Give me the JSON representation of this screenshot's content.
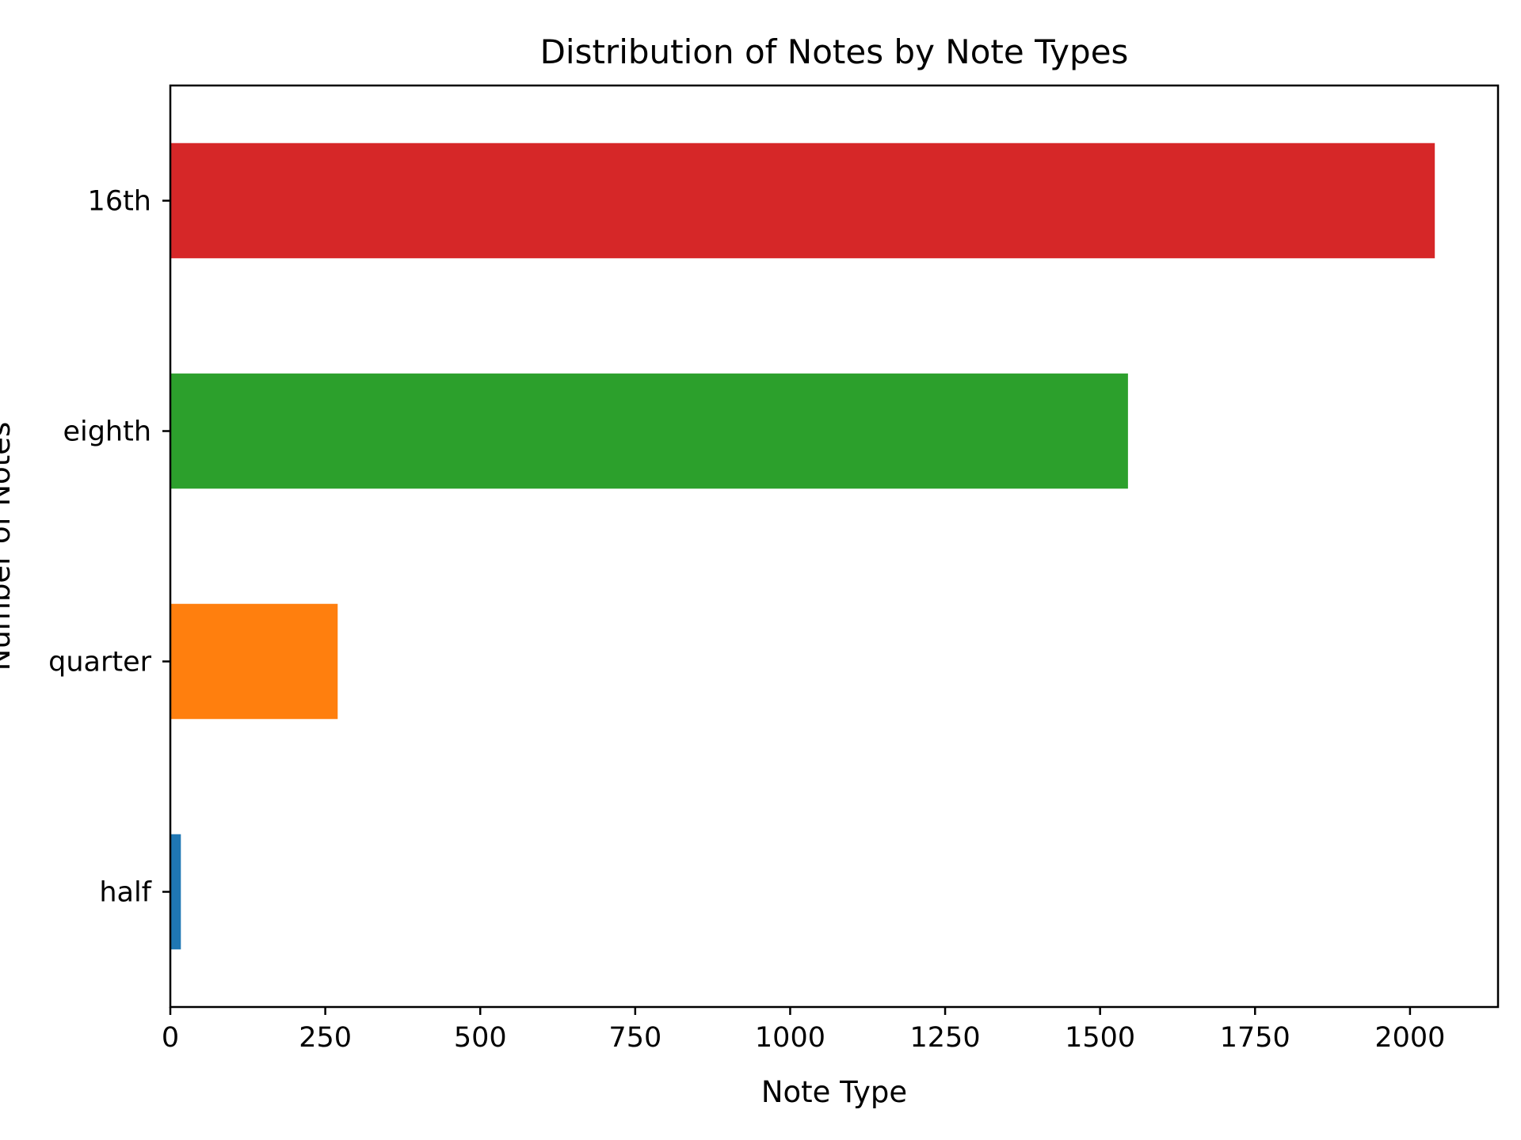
{
  "chart_data": {
    "type": "bar",
    "orientation": "horizontal",
    "title": "Distribution of Notes by Note Types",
    "xlabel": "Note Type",
    "ylabel": "Number of Notes",
    "categories": [
      "half",
      "quarter",
      "eighth",
      "16th"
    ],
    "values": [
      17,
      270,
      1545,
      2040
    ],
    "colors": [
      "#1f77b4",
      "#ff7f0e",
      "#2ca02c",
      "#d62728"
    ],
    "xlim": [
      0,
      2142
    ],
    "xticks": [
      0,
      250,
      500,
      750,
      1000,
      1250,
      1500,
      1750,
      2000
    ],
    "grid": false,
    "legend": "none"
  }
}
